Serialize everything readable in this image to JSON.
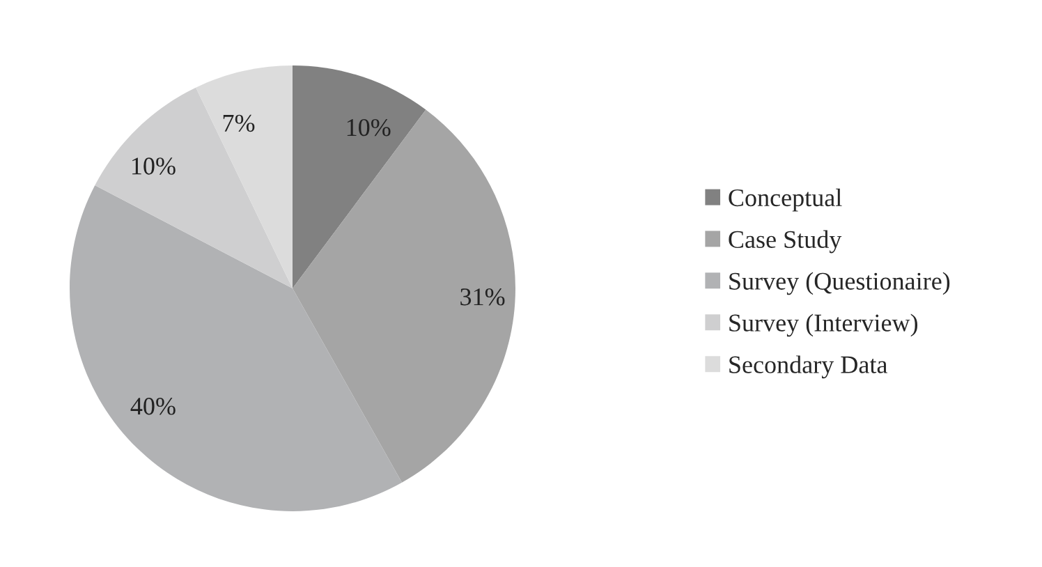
{
  "chart_data": {
    "type": "pie",
    "categories": [
      "Conceptual",
      "Case Study",
      "Survey (Questionaire)",
      "Survey (Interview)",
      "Secondary Data"
    ],
    "values": [
      10,
      31,
      40,
      10,
      7
    ],
    "colors": [
      "#818181",
      "#a5a5a5",
      "#b1b2b4",
      "#cfcfd0",
      "#dcdcdc"
    ],
    "value_labels": [
      "10%",
      "31%",
      "40%",
      "10%",
      "7%"
    ],
    "legend": "right"
  }
}
